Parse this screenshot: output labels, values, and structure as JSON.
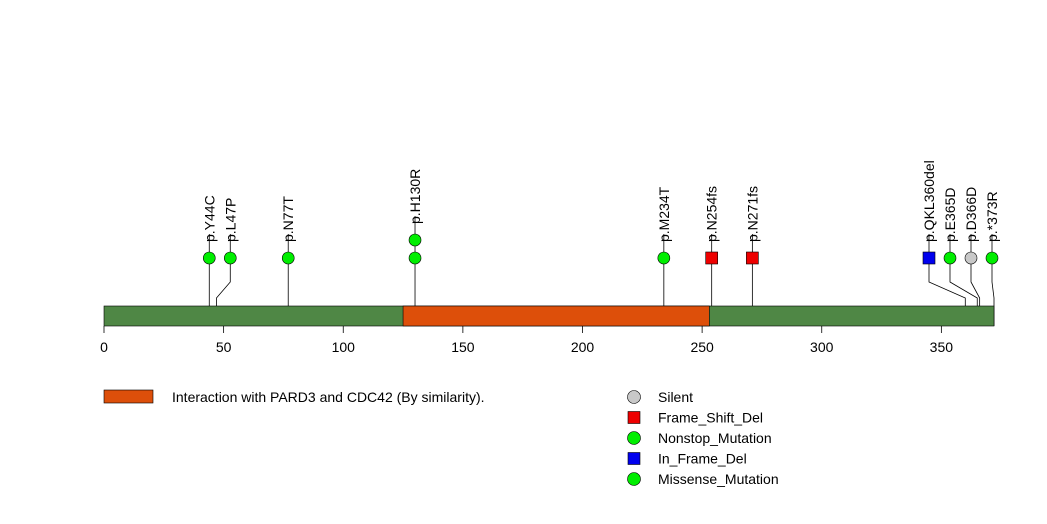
{
  "chart_data": {
    "type": "lollipop",
    "protein_length": 372,
    "xlim": [
      0,
      372
    ],
    "x_ticks": [
      0,
      50,
      100,
      150,
      200,
      250,
      300,
      350
    ],
    "backbone_color": "#4f8745",
    "domains": [
      {
        "start": 125,
        "end": 253,
        "label": "Interaction with PARD3 and CDC42 (By similarity).",
        "color": "#dd4f0a"
      }
    ],
    "mutation_types": [
      {
        "name": "Silent",
        "shape": "circle",
        "color": "#c8c8c8"
      },
      {
        "name": "Frame_Shift_Del",
        "shape": "square",
        "color": "#ee0000"
      },
      {
        "name": "Nonstop_Mutation",
        "shape": "circle",
        "color": "#00ee00"
      },
      {
        "name": "In_Frame_Del",
        "shape": "square",
        "color": "#0000ee"
      },
      {
        "name": "Missense_Mutation",
        "shape": "circle",
        "color": "#00ee00"
      }
    ],
    "mutations": [
      {
        "label": "p.Y44C",
        "pos": 44,
        "count": 1,
        "type": "Missense_Mutation"
      },
      {
        "label": "p.L47P",
        "pos": 47,
        "count": 1,
        "type": "Missense_Mutation"
      },
      {
        "label": "p.N77T",
        "pos": 77,
        "count": 1,
        "type": "Missense_Mutation"
      },
      {
        "label": "p.H130R",
        "pos": 130,
        "count": 2,
        "type": "Missense_Mutation"
      },
      {
        "label": "p.M234T",
        "pos": 234,
        "count": 1,
        "type": "Missense_Mutation"
      },
      {
        "label": "p.N254fs",
        "pos": 254,
        "count": 1,
        "type": "Frame_Shift_Del"
      },
      {
        "label": "p.N271fs",
        "pos": 271,
        "count": 1,
        "type": "Frame_Shift_Del"
      },
      {
        "label": "p.QKL360del",
        "pos": 360,
        "count": 1,
        "type": "In_Frame_Del"
      },
      {
        "label": "p.E365D",
        "pos": 365,
        "count": 1,
        "type": "Missense_Mutation"
      },
      {
        "label": "p.D366D",
        "pos": 366,
        "count": 1,
        "type": "Silent"
      },
      {
        "label": "p.*373R",
        "pos": 372,
        "count": 1,
        "type": "Nonstop_Mutation"
      }
    ]
  }
}
